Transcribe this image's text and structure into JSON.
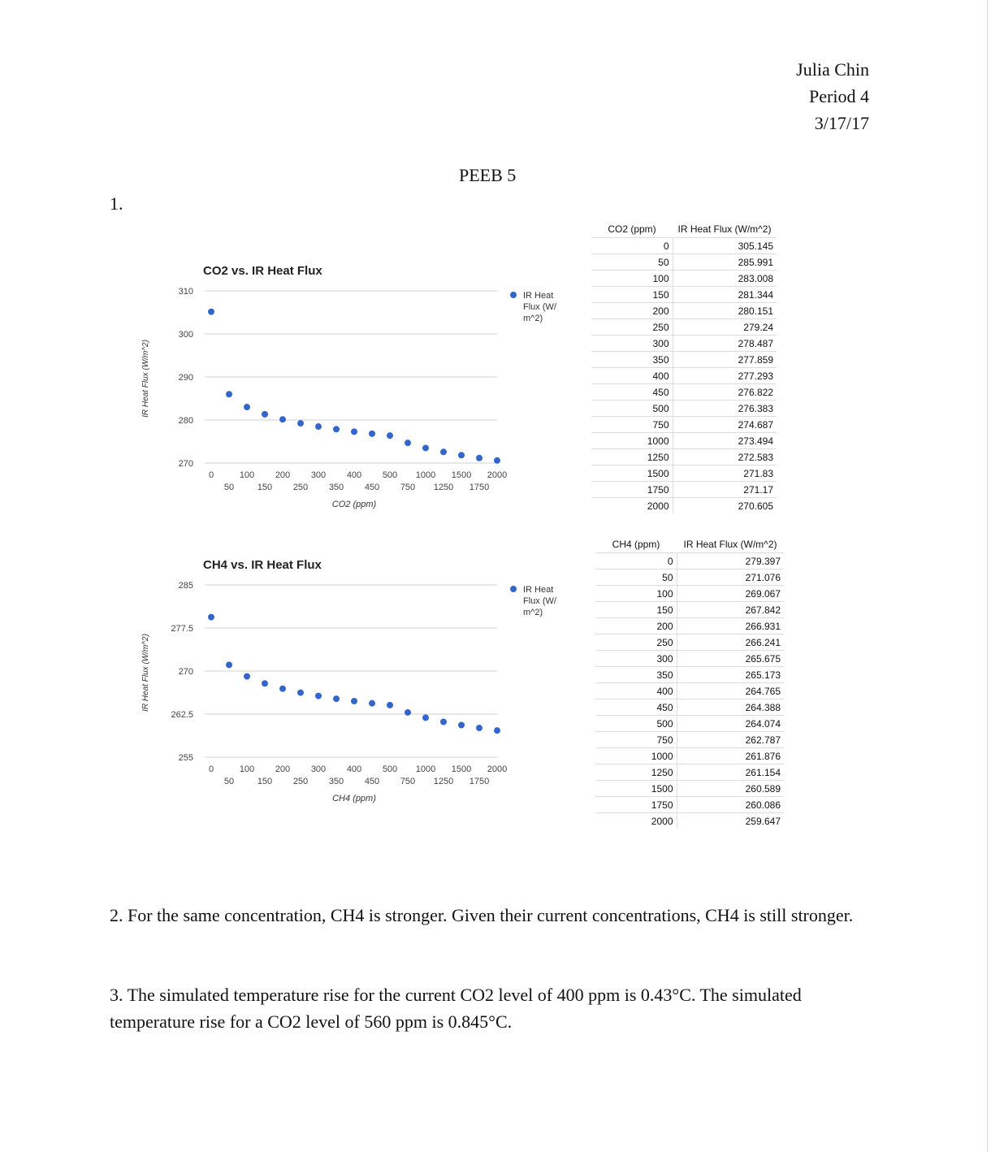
{
  "header": {
    "name": "Julia Chin",
    "period": "Period 4",
    "date": "3/17/17"
  },
  "title": "PEEB 5",
  "q1_label": "1.",
  "q2_text": "2.  For the same concentration, CH4 is stronger.  Given their current concentrations, CH4 is still stronger.",
  "q3_text": "3. The simulated temperature rise for the current CO2 level of 400 ppm is 0.43°C. The simulated temperature rise for a CO2 level of 560 ppm is 0.845°C.",
  "tables": {
    "co2": {
      "headers": [
        "CO2 (ppm)",
        "IR Heat Flux (W/m^2)"
      ],
      "rows": [
        [
          "0",
          "305.145"
        ],
        [
          "50",
          "285.991"
        ],
        [
          "100",
          "283.008"
        ],
        [
          "150",
          "281.344"
        ],
        [
          "200",
          "280.151"
        ],
        [
          "250",
          "279.24"
        ],
        [
          "300",
          "278.487"
        ],
        [
          "350",
          "277.859"
        ],
        [
          "400",
          "277.293"
        ],
        [
          "450",
          "276.822"
        ],
        [
          "500",
          "276.383"
        ],
        [
          "750",
          "274.687"
        ],
        [
          "1000",
          "273.494"
        ],
        [
          "1250",
          "272.583"
        ],
        [
          "1500",
          "271.83"
        ],
        [
          "1750",
          "271.17"
        ],
        [
          "2000",
          "270.605"
        ]
      ]
    },
    "ch4": {
      "headers": [
        "CH4 (ppm)",
        "IR Heat Flux (W/m^2)"
      ],
      "rows": [
        [
          "0",
          "279.397"
        ],
        [
          "50",
          "271.076"
        ],
        [
          "100",
          "269.067"
        ],
        [
          "150",
          "267.842"
        ],
        [
          "200",
          "266.931"
        ],
        [
          "250",
          "266.241"
        ],
        [
          "300",
          "265.675"
        ],
        [
          "350",
          "265.173"
        ],
        [
          "400",
          "264.765"
        ],
        [
          "450",
          "264.388"
        ],
        [
          "500",
          "264.074"
        ],
        [
          "750",
          "262.787"
        ],
        [
          "1000",
          "261.876"
        ],
        [
          "1250",
          "261.154"
        ],
        [
          "1500",
          "260.589"
        ],
        [
          "1750",
          "260.086"
        ],
        [
          "2000",
          "259.647"
        ]
      ]
    }
  },
  "chart_data": [
    {
      "type": "scatter",
      "title": "CO2 vs. IR Heat Flux",
      "xlabel": "CO2 (ppm)",
      "ylabel": "IR Heat Flux (W/m^2)",
      "categories": [
        "0",
        "50",
        "100",
        "150",
        "200",
        "250",
        "300",
        "350",
        "400",
        "450",
        "500",
        "750",
        "1000",
        "1250",
        "1500",
        "1750",
        "2000"
      ],
      "series": [
        {
          "name": "IR Heat Flux (W/m^2)",
          "legend_lines": [
            "IR Heat",
            "Flux (W/",
            "m^2)"
          ],
          "values": [
            305.145,
            285.991,
            283.008,
            281.344,
            280.151,
            279.24,
            278.487,
            277.859,
            277.293,
            276.822,
            276.383,
            274.687,
            273.494,
            272.583,
            271.83,
            271.17,
            270.605
          ]
        }
      ],
      "ylim": [
        270,
        310
      ],
      "yticks": [
        "310",
        "300",
        "290",
        "280",
        "270"
      ],
      "grid": true,
      "legend": "right",
      "color": "#3366cc"
    },
    {
      "type": "scatter",
      "title": "CH4 vs. IR Heat Flux",
      "xlabel": "CH4 (ppm)",
      "ylabel": "IR Heat Flux (W/m^2)",
      "categories": [
        "0",
        "50",
        "100",
        "150",
        "200",
        "250",
        "300",
        "350",
        "400",
        "450",
        "500",
        "750",
        "1000",
        "1250",
        "1500",
        "1750",
        "2000"
      ],
      "series": [
        {
          "name": "IR Heat Flux (W/m^2)",
          "legend_lines": [
            "IR Heat",
            "Flux (W/",
            "m^2)"
          ],
          "values": [
            279.397,
            271.076,
            269.067,
            267.842,
            266.931,
            266.241,
            265.675,
            265.173,
            264.765,
            264.388,
            264.074,
            262.787,
            261.876,
            261.154,
            260.589,
            260.086,
            259.647
          ]
        }
      ],
      "ylim": [
        255,
        285
      ],
      "yticks": [
        "285",
        "277.5",
        "270",
        "262.5",
        "255"
      ],
      "grid": true,
      "legend": "right",
      "color": "#3366cc"
    }
  ]
}
